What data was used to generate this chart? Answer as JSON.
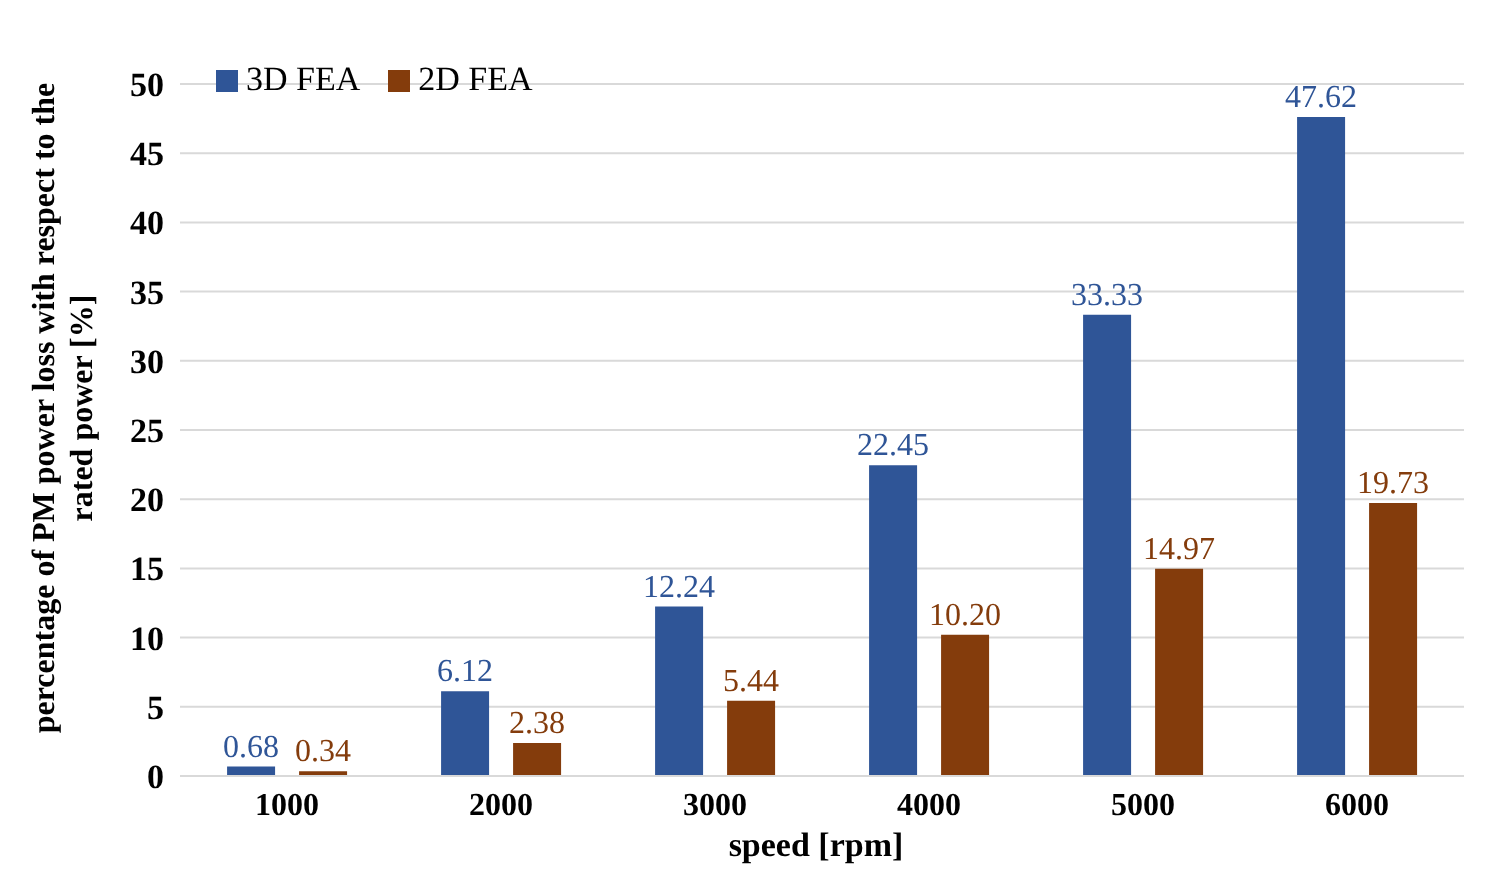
{
  "chart_data": {
    "type": "bar",
    "xlabel": "speed [rpm]",
    "ylabel": "percentage of PM power loss with respect to the rated power [%]",
    "categories": [
      "1000",
      "2000",
      "3000",
      "4000",
      "5000",
      "6000"
    ],
    "series": [
      {
        "name": "3D FEA",
        "color": "#2f5597",
        "values": [
          0.68,
          6.12,
          12.24,
          22.45,
          33.33,
          47.62
        ],
        "value_labels": [
          "0.68",
          "6.12",
          "12.24",
          "22.45",
          "33.33",
          "47.62"
        ]
      },
      {
        "name": "2D FEA",
        "color": "#843c0c",
        "values": [
          0.34,
          2.38,
          5.44,
          10.2,
          14.97,
          19.73
        ],
        "value_labels": [
          "0.34",
          "2.38",
          "5.44",
          "10.20",
          "14.97",
          "19.73"
        ]
      }
    ],
    "ylim": [
      0,
      50
    ],
    "yticks": [
      0,
      5,
      10,
      15,
      20,
      25,
      30,
      35,
      40,
      45,
      50
    ],
    "grid": "y",
    "legend": "top left"
  }
}
